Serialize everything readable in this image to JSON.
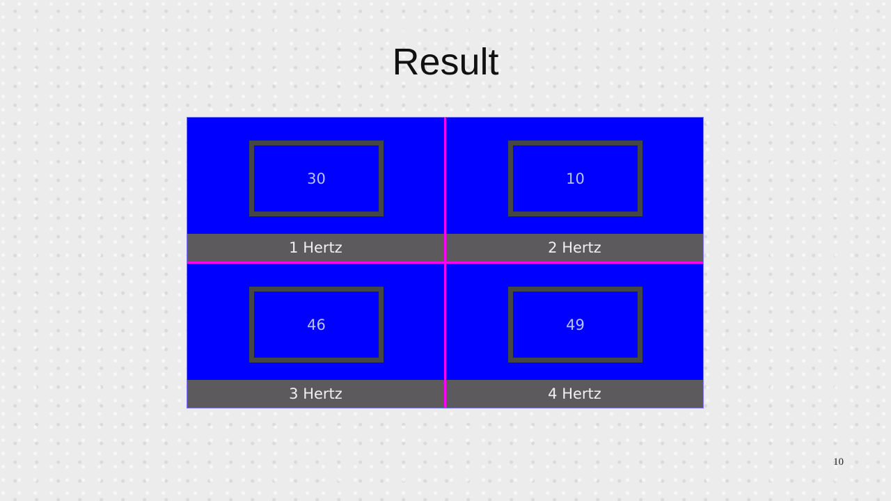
{
  "slide": {
    "title": "Result",
    "page_number": "10"
  },
  "cells": [
    {
      "value": "30",
      "label": "1 Hertz"
    },
    {
      "value": "10",
      "label": "2 Hertz"
    },
    {
      "value": "46",
      "label": "3 Hertz"
    },
    {
      "value": "49",
      "label": "4 Hertz"
    }
  ],
  "colors": {
    "cell_background": "#0000ff",
    "divider": "#ff00ff",
    "label_bar": "#5d5a5d",
    "box_border": "#464646"
  }
}
